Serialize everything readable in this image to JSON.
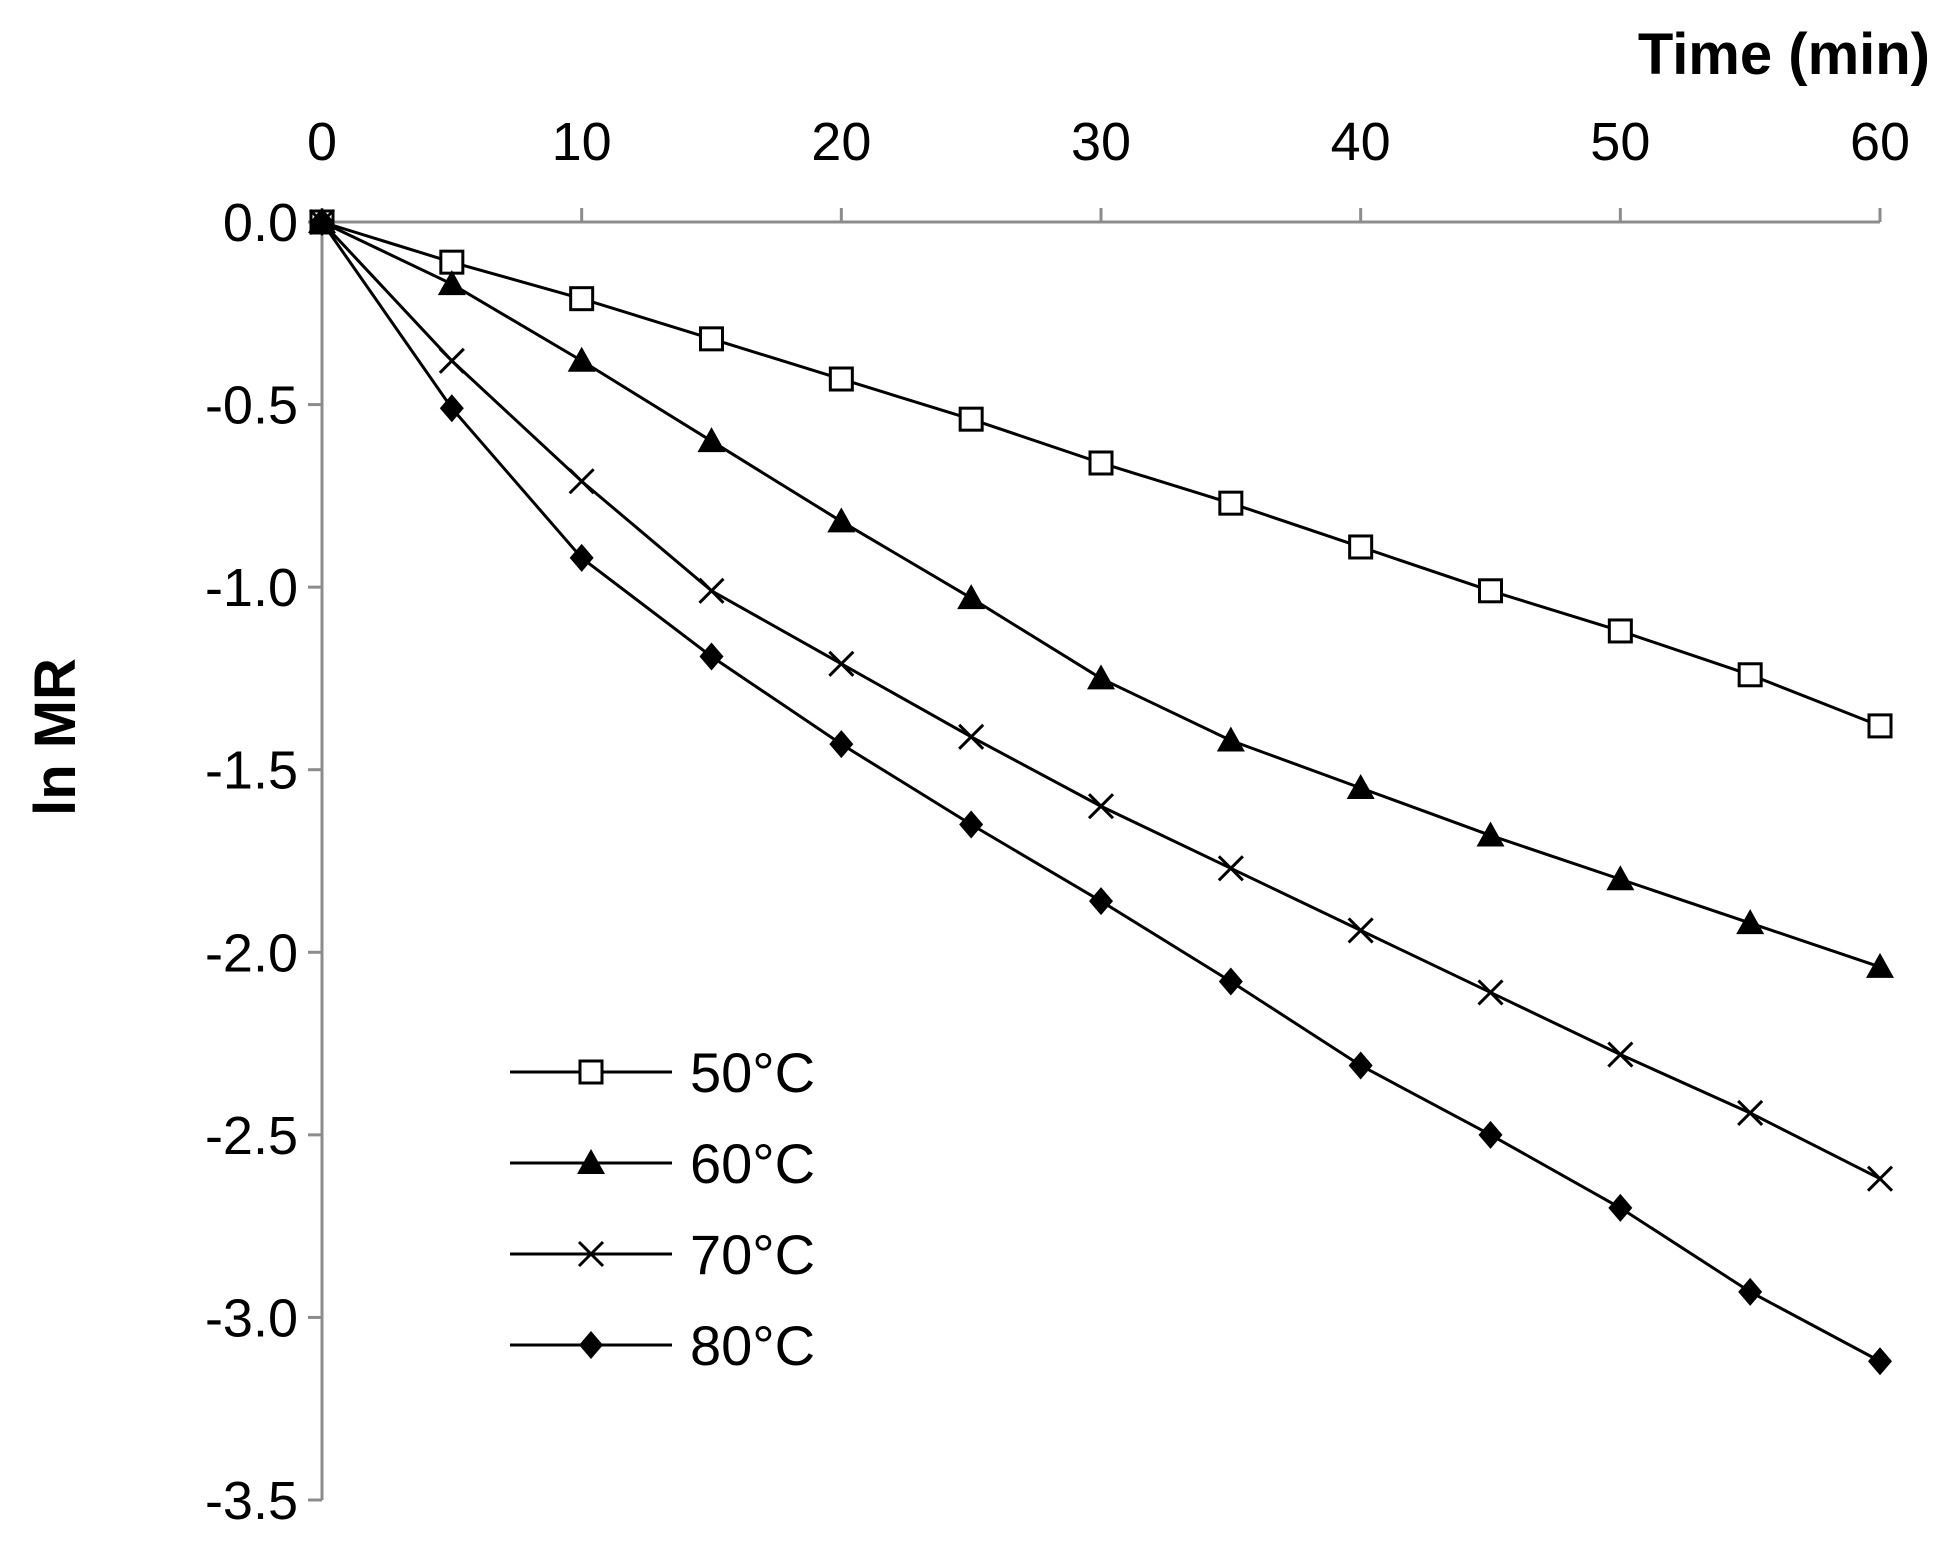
{
  "chart_data": {
    "type": "line",
    "xlabel": "Time (min)",
    "ylabel": "ln MR",
    "xlim": [
      0,
      60
    ],
    "ylim": [
      -3.5,
      0.0
    ],
    "x_axis_position": "top",
    "xticks": [
      "0",
      "10",
      "20",
      "30",
      "40",
      "50",
      "60"
    ],
    "xtick_values": [
      0,
      10,
      20,
      30,
      40,
      50,
      60
    ],
    "yticks": [
      "0.0",
      "-0.5",
      "-1.0",
      "-1.5",
      "-2.0",
      "-2.5",
      "-3.0",
      "-3.5"
    ],
    "ytick_values": [
      0.0,
      -0.5,
      -1.0,
      -1.5,
      -2.0,
      -2.5,
      -3.0,
      -3.5
    ],
    "grid": false,
    "legend_position": "bottom-left",
    "x": [
      0,
      5,
      10,
      15,
      20,
      25,
      30,
      35,
      40,
      45,
      50,
      55,
      60
    ],
    "series": [
      {
        "name": "50°C",
        "marker": "open-square",
        "values": [
          0,
          -0.11,
          -0.21,
          -0.32,
          -0.43,
          -0.54,
          -0.66,
          -0.77,
          -0.89,
          -1.01,
          -1.12,
          -1.24,
          -1.38
        ]
      },
      {
        "name": "60°C",
        "marker": "filled-triangle",
        "values": [
          0,
          -0.17,
          -0.38,
          -0.6,
          -0.82,
          -1.03,
          -1.25,
          -1.42,
          -1.55,
          -1.68,
          -1.8,
          -1.92,
          -2.04
        ]
      },
      {
        "name": "70°C",
        "marker": "x",
        "values": [
          0,
          -0.38,
          -0.71,
          -1.01,
          -1.21,
          -1.41,
          -1.6,
          -1.77,
          -1.94,
          -2.11,
          -2.28,
          -2.44,
          -2.62
        ]
      },
      {
        "name": "80°C",
        "marker": "filled-diamond",
        "values": [
          0,
          -0.51,
          -0.92,
          -1.19,
          -1.43,
          -1.65,
          -1.86,
          -2.08,
          -2.31,
          -2.5,
          -2.7,
          -2.93,
          -3.12
        ]
      }
    ]
  }
}
